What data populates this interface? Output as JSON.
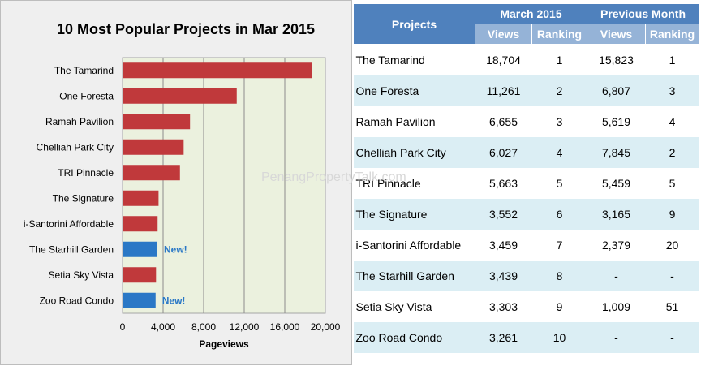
{
  "chart_data": {
    "type": "bar",
    "title": "10 Most Popular Projects in Mar 2015",
    "xlabel": "Pageviews",
    "ylabel": "",
    "xlim": [
      0,
      20000
    ],
    "xticks": [
      "0",
      "4,000",
      "8,000",
      "12,000",
      "16,000",
      "20,000"
    ],
    "categories": [
      "The Tamarind",
      "One Foresta",
      "Ramah Pavilion",
      "Chelliah Park City",
      "TRI Pinnacle",
      "The Signature",
      "i-Santorini Affordable",
      "The Starhill Garden",
      "Setia Sky Vista",
      "Zoo Road Condo"
    ],
    "values": [
      18704,
      11261,
      6655,
      6027,
      5663,
      3552,
      3459,
      3439,
      3303,
      3261
    ],
    "new_flags": [
      false,
      false,
      false,
      false,
      false,
      false,
      false,
      true,
      false,
      true
    ],
    "new_label": "New!",
    "grid": true,
    "colors": {
      "existing": "#c0393b",
      "new": "#2a78c6",
      "plot_bg": "#ebf1de"
    }
  },
  "watermark": "PenangPropertyTalk.com",
  "table": {
    "header_projects": "Projects",
    "header_current": "March 2015",
    "header_previous": "Previous Month",
    "sub_views": "Views",
    "sub_ranking": "Ranking",
    "rows": [
      {
        "name": "The Tamarind",
        "views": "18,704",
        "rank": "1",
        "prev_views": "15,823",
        "prev_rank": "1"
      },
      {
        "name": "One Foresta",
        "views": "11,261",
        "rank": "2",
        "prev_views": "6,807",
        "prev_rank": "3"
      },
      {
        "name": "Ramah Pavilion",
        "views": "6,655",
        "rank": "3",
        "prev_views": "5,619",
        "prev_rank": "4"
      },
      {
        "name": "Chelliah Park City",
        "views": "6,027",
        "rank": "4",
        "prev_views": "7,845",
        "prev_rank": "2"
      },
      {
        "name": "TRI Pinnacle",
        "views": "5,663",
        "rank": "5",
        "prev_views": "5,459",
        "prev_rank": "5"
      },
      {
        "name": "The Signature",
        "views": "3,552",
        "rank": "6",
        "prev_views": "3,165",
        "prev_rank": "9"
      },
      {
        "name": "i-Santorini Affordable",
        "views": "3,459",
        "rank": "7",
        "prev_views": "2,379",
        "prev_rank": "20"
      },
      {
        "name": "The Starhill Garden",
        "views": "3,439",
        "rank": "8",
        "prev_views": "-",
        "prev_rank": "-"
      },
      {
        "name": "Setia Sky Vista",
        "views": "3,303",
        "rank": "9",
        "prev_views": "1,009",
        "prev_rank": "51"
      },
      {
        "name": "Zoo Road Condo",
        "views": "3,261",
        "rank": "10",
        "prev_views": "-",
        "prev_rank": "-"
      }
    ]
  }
}
